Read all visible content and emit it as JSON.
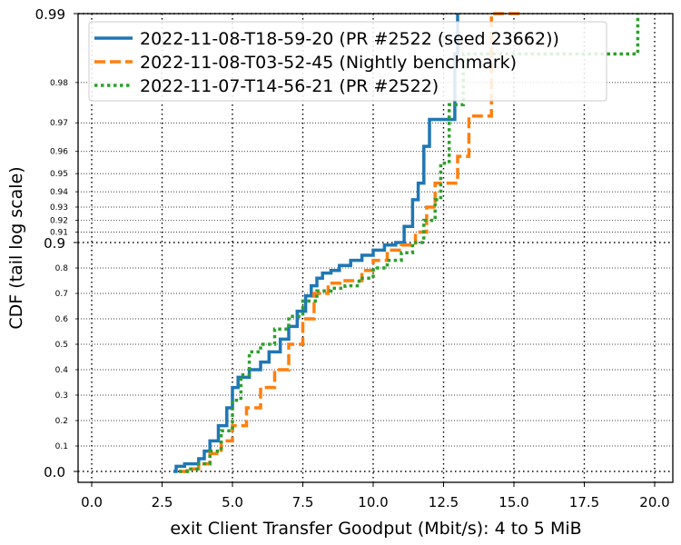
{
  "chart_data": {
    "type": "line",
    "xlabel": "exit Client Transfer Goodput (Mbit/s): 4 to 5 MiB",
    "ylabel": "CDF (tail log scale)",
    "xlim": [
      -0.5,
      20.6
    ],
    "x_ticks": [
      "0.0",
      "2.5",
      "5.0",
      "7.5",
      "10.0",
      "12.5",
      "15.0",
      "17.5",
      "20.0"
    ],
    "y_scale": "tail-log (CDF)",
    "y_major_ticks": [
      "0.0",
      "0.9",
      "0.99"
    ],
    "y_minor_ticks": [
      "0.1",
      "0.2",
      "0.3",
      "0.4",
      "0.5",
      "0.6",
      "0.7",
      "0.8",
      "0.91",
      "0.92",
      "0.93",
      "0.94",
      "0.95",
      "0.96",
      "0.97",
      "0.98"
    ],
    "grid": true,
    "legend_position": "top",
    "series": [
      {
        "name": "2022-11-08-T18-59-20 (PR #2522 (seed 23662))",
        "color": "#1f77b4",
        "style": "solid",
        "points": [
          [
            2.9,
            0.0
          ],
          [
            3.0,
            0.02
          ],
          [
            3.3,
            0.03
          ],
          [
            3.8,
            0.05
          ],
          [
            4.0,
            0.08
          ],
          [
            4.2,
            0.12
          ],
          [
            4.5,
            0.18
          ],
          [
            4.8,
            0.25
          ],
          [
            5.0,
            0.33
          ],
          [
            5.2,
            0.37
          ],
          [
            5.6,
            0.4
          ],
          [
            6.0,
            0.43
          ],
          [
            6.3,
            0.47
          ],
          [
            6.7,
            0.52
          ],
          [
            7.0,
            0.57
          ],
          [
            7.3,
            0.63
          ],
          [
            7.6,
            0.69
          ],
          [
            7.8,
            0.73
          ],
          [
            8.0,
            0.76
          ],
          [
            8.2,
            0.78
          ],
          [
            8.5,
            0.79
          ],
          [
            8.8,
            0.81
          ],
          [
            9.2,
            0.83
          ],
          [
            9.6,
            0.85
          ],
          [
            10.0,
            0.87
          ],
          [
            10.4,
            0.89
          ],
          [
            10.8,
            0.9
          ],
          [
            11.1,
            0.915
          ],
          [
            11.4,
            0.935
          ],
          [
            11.6,
            0.945
          ],
          [
            11.8,
            0.962
          ],
          [
            12.0,
            0.971
          ],
          [
            12.4,
            0.971
          ],
          [
            12.8,
            0.971
          ],
          [
            12.9,
            0.985
          ],
          [
            13.0,
            0.99
          ]
        ]
      },
      {
        "name": "2022-11-08-T03-52-45 (Nightly benchmark)",
        "color": "#ff7f0e",
        "style": "dashed",
        "points": [
          [
            3.1,
            0.0
          ],
          [
            3.4,
            0.01
          ],
          [
            3.8,
            0.03
          ],
          [
            4.2,
            0.07
          ],
          [
            4.6,
            0.12
          ],
          [
            5.0,
            0.18
          ],
          [
            5.5,
            0.25
          ],
          [
            6.0,
            0.33
          ],
          [
            6.5,
            0.4
          ],
          [
            7.0,
            0.5
          ],
          [
            7.5,
            0.6
          ],
          [
            7.9,
            0.7
          ],
          [
            8.4,
            0.74
          ],
          [
            9.0,
            0.75
          ],
          [
            9.6,
            0.79
          ],
          [
            10.0,
            0.83
          ],
          [
            10.5,
            0.87
          ],
          [
            11.0,
            0.89
          ],
          [
            11.5,
            0.91
          ],
          [
            11.9,
            0.93
          ],
          [
            12.2,
            0.945
          ],
          [
            12.6,
            0.945
          ],
          [
            13.0,
            0.958
          ],
          [
            13.4,
            0.972
          ],
          [
            13.8,
            0.972
          ],
          [
            14.2,
            0.99
          ],
          [
            15.3,
            0.99
          ]
        ]
      },
      {
        "name": "2022-11-07-T14-56-21 (PR #2522)",
        "color": "#2ca02c",
        "style": "dotted",
        "points": [
          [
            3.1,
            0.0
          ],
          [
            3.4,
            0.01
          ],
          [
            3.8,
            0.03
          ],
          [
            4.2,
            0.08
          ],
          [
            4.6,
            0.16
          ],
          [
            5.0,
            0.28
          ],
          [
            5.3,
            0.38
          ],
          [
            5.6,
            0.47
          ],
          [
            6.0,
            0.5
          ],
          [
            6.5,
            0.56
          ],
          [
            7.0,
            0.61
          ],
          [
            7.5,
            0.67
          ],
          [
            8.0,
            0.71
          ],
          [
            8.5,
            0.72
          ],
          [
            9.0,
            0.73
          ],
          [
            9.5,
            0.76
          ],
          [
            10.0,
            0.8
          ],
          [
            10.5,
            0.83
          ],
          [
            11.0,
            0.86
          ],
          [
            11.4,
            0.9
          ],
          [
            11.8,
            0.92
          ],
          [
            12.2,
            0.935
          ],
          [
            12.4,
            0.955
          ],
          [
            12.7,
            0.975
          ],
          [
            13.2,
            0.985
          ],
          [
            15.0,
            0.985
          ],
          [
            19.4,
            0.985
          ],
          [
            19.4,
            0.99
          ]
        ]
      }
    ]
  }
}
